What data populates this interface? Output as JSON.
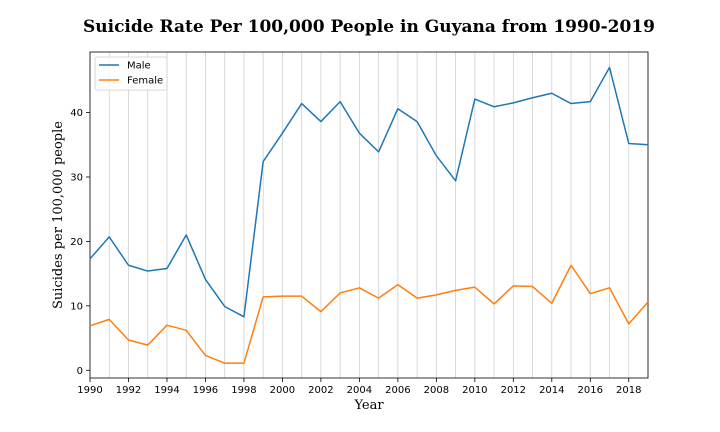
{
  "chart_data": {
    "type": "line",
    "title": "Suicide Rate Per 100,000 People in Guyana from 1990-2019",
    "xlabel": "Year",
    "ylabel": "Suicides per 100,000 people",
    "xlim": [
      1990,
      2019
    ],
    "ylim": [
      -1.2,
      49.4
    ],
    "x_ticks": [
      1990,
      1992,
      1994,
      1996,
      1998,
      2000,
      2002,
      2004,
      2006,
      2008,
      2010,
      2012,
      2014,
      2016,
      2018
    ],
    "y_ticks": [
      0,
      10,
      20,
      30,
      40
    ],
    "grid": "vertical",
    "legend_position": "top-left",
    "x": [
      1990,
      1991,
      1992,
      1993,
      1994,
      1995,
      1996,
      1997,
      1998,
      1999,
      2000,
      2001,
      2002,
      2003,
      2004,
      2005,
      2006,
      2007,
      2008,
      2009,
      2010,
      2011,
      2012,
      2013,
      2014,
      2015,
      2016,
      2017,
      2018,
      2019
    ],
    "series": [
      {
        "name": "Male",
        "color": "#1f77b4",
        "values": [
          17.3,
          20.7,
          16.3,
          15.4,
          15.8,
          21.0,
          14.1,
          9.9,
          8.3,
          32.4,
          36.8,
          41.4,
          38.6,
          41.7,
          36.8,
          33.9,
          40.6,
          38.6,
          33.3,
          29.4,
          42.1,
          40.9,
          41.5,
          42.3,
          43.0,
          41.4,
          41.7,
          47.0,
          35.2,
          35.0
        ]
      },
      {
        "name": "Female",
        "color": "#ff7f0e",
        "values": [
          6.9,
          7.9,
          4.7,
          3.9,
          7.0,
          6.2,
          2.3,
          1.1,
          1.1,
          11.4,
          11.5,
          11.5,
          9.1,
          12.0,
          12.8,
          11.2,
          13.3,
          11.2,
          11.7,
          12.4,
          12.9,
          10.3,
          13.1,
          13.0,
          10.4,
          16.3,
          11.9,
          12.8,
          7.2,
          10.6
        ]
      }
    ]
  }
}
